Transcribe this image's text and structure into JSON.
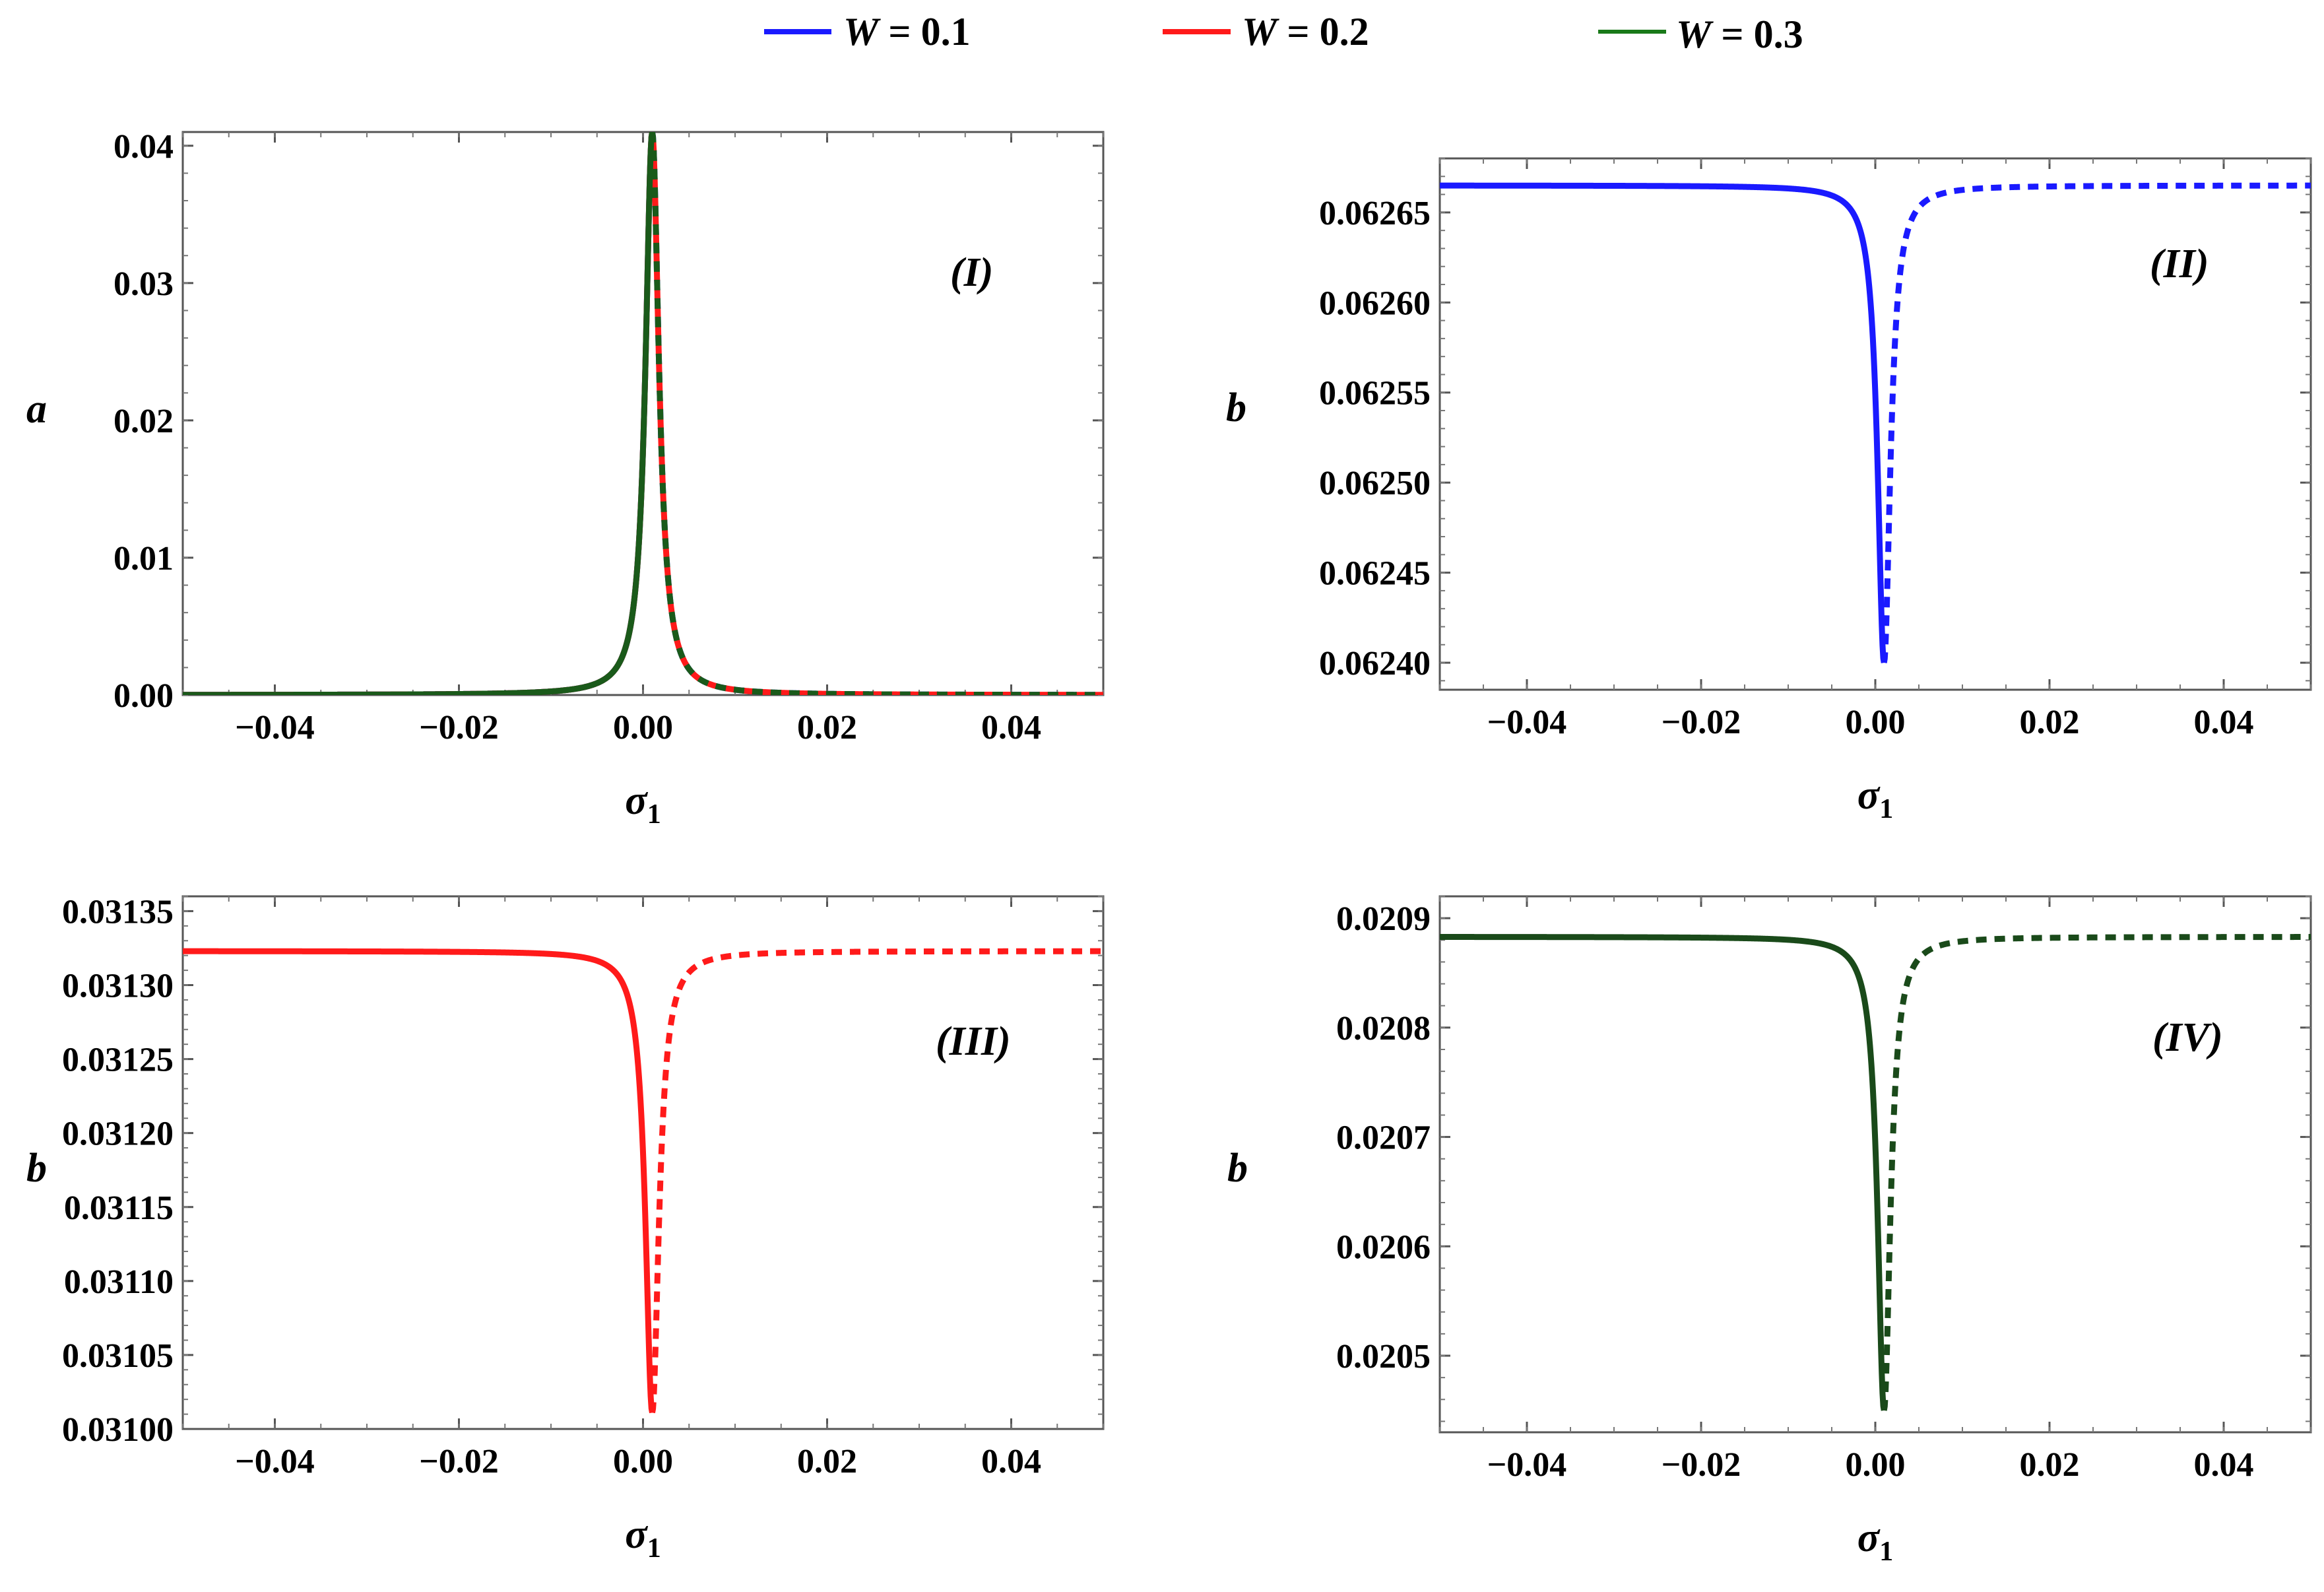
{
  "legend": {
    "items": [
      {
        "var": "W",
        "eq": " = ",
        "val": "0.1",
        "color": "#1a1aff"
      },
      {
        "var": "W",
        "eq": " = ",
        "val": "0.2",
        "color": "#ff1a1a"
      },
      {
        "var": "W",
        "eq": " = ",
        "val": "0.3",
        "color": "#1a7a1a"
      }
    ]
  },
  "chart_data": [
    {
      "type": "line",
      "panel": "(I)",
      "xlabel": "σ",
      "xlabel_sub": "1",
      "ylabel": "a",
      "xlim": [
        -0.05,
        0.05
      ],
      "ylim": [
        0.0,
        0.041
      ],
      "xticks": [
        -0.04,
        -0.02,
        0.0,
        0.02,
        0.04
      ],
      "xtick_labels": [
        "−0.04",
        "−0.02",
        "0.00",
        "0.02",
        "0.04"
      ],
      "yticks": [
        0.0,
        0.01,
        0.02,
        0.03,
        0.04
      ],
      "ytick_labels": [
        "0.00",
        "0.01",
        "0.02",
        "0.03",
        "0.04"
      ],
      "curve": {
        "kind": "peak",
        "peak_x": 0.001,
        "base": 0.0,
        "peak": 0.041,
        "gamma": 0.00088
      },
      "series": [
        {
          "name": "W = 0.1",
          "color": "#1a1aff"
        },
        {
          "name": "W = 0.2",
          "color": "#ff1a1a"
        },
        {
          "name": "W = 0.3",
          "color": "#1a5a1a"
        }
      ]
    },
    {
      "type": "line",
      "panel": "(II)",
      "xlabel": "σ",
      "xlabel_sub": "1",
      "ylabel": "b",
      "xlim": [
        -0.05,
        0.05
      ],
      "ylim": [
        0.062385,
        0.06268
      ],
      "xticks": [
        -0.04,
        -0.02,
        0.0,
        0.02,
        0.04
      ],
      "xtick_labels": [
        "−0.04",
        "−0.02",
        "0.00",
        "0.02",
        "0.04"
      ],
      "yticks": [
        0.0624,
        0.06245,
        0.0625,
        0.06255,
        0.0626,
        0.06265
      ],
      "ytick_labels": [
        "0.06240",
        "0.06245",
        "0.06250",
        "0.06255",
        "0.06260",
        "0.06265"
      ],
      "curve": {
        "kind": "dip",
        "peak_x": 0.001,
        "base": 0.062665,
        "min": 0.0624,
        "gamma": 0.00088
      },
      "series": [
        {
          "name": "W = 0.1",
          "color": "#1a1aff"
        }
      ]
    },
    {
      "type": "line",
      "panel": "(III)",
      "xlabel": "σ",
      "xlabel_sub": "1",
      "ylabel": "b",
      "xlim": [
        -0.05,
        0.05
      ],
      "ylim": [
        0.031,
        0.03136
      ],
      "xticks": [
        -0.04,
        -0.02,
        0.0,
        0.02,
        0.04
      ],
      "xtick_labels": [
        "−0.04",
        "−0.02",
        "0.00",
        "0.02",
        "0.04"
      ],
      "yticks": [
        0.031,
        0.03105,
        0.0311,
        0.03115,
        0.0312,
        0.03125,
        0.0313,
        0.03135
      ],
      "ytick_labels": [
        "0.03100",
        "0.03105",
        "0.03110",
        "0.03115",
        "0.03120",
        "0.03125",
        "0.03130",
        "0.03135"
      ],
      "curve": {
        "kind": "dip",
        "peak_x": 0.001,
        "base": 0.031323,
        "min": 0.031011,
        "gamma": 0.00088
      },
      "series": [
        {
          "name": "W = 0.2",
          "color": "#ff1a1a"
        }
      ]
    },
    {
      "type": "line",
      "panel": "(IV)",
      "xlabel": "σ",
      "xlabel_sub": "1",
      "ylabel": "b",
      "xlim": [
        -0.05,
        0.05
      ],
      "ylim": [
        0.02043,
        0.02092
      ],
      "xticks": [
        -0.04,
        -0.02,
        0.0,
        0.02,
        0.04
      ],
      "xtick_labels": [
        "−0.04",
        "−0.02",
        "0.00",
        "0.02",
        "0.04"
      ],
      "yticks": [
        0.0205,
        0.0206,
        0.0207,
        0.0208,
        0.0209
      ],
      "ytick_labels": [
        "0.0205",
        "0.0206",
        "0.0207",
        "0.0208",
        "0.0209"
      ],
      "curve": {
        "kind": "dip",
        "peak_x": 0.001,
        "base": 0.020883,
        "min": 0.02045,
        "gamma": 0.00088
      },
      "series": [
        {
          "name": "W = 0.3",
          "color": "#1a4a1a"
        }
      ]
    }
  ]
}
